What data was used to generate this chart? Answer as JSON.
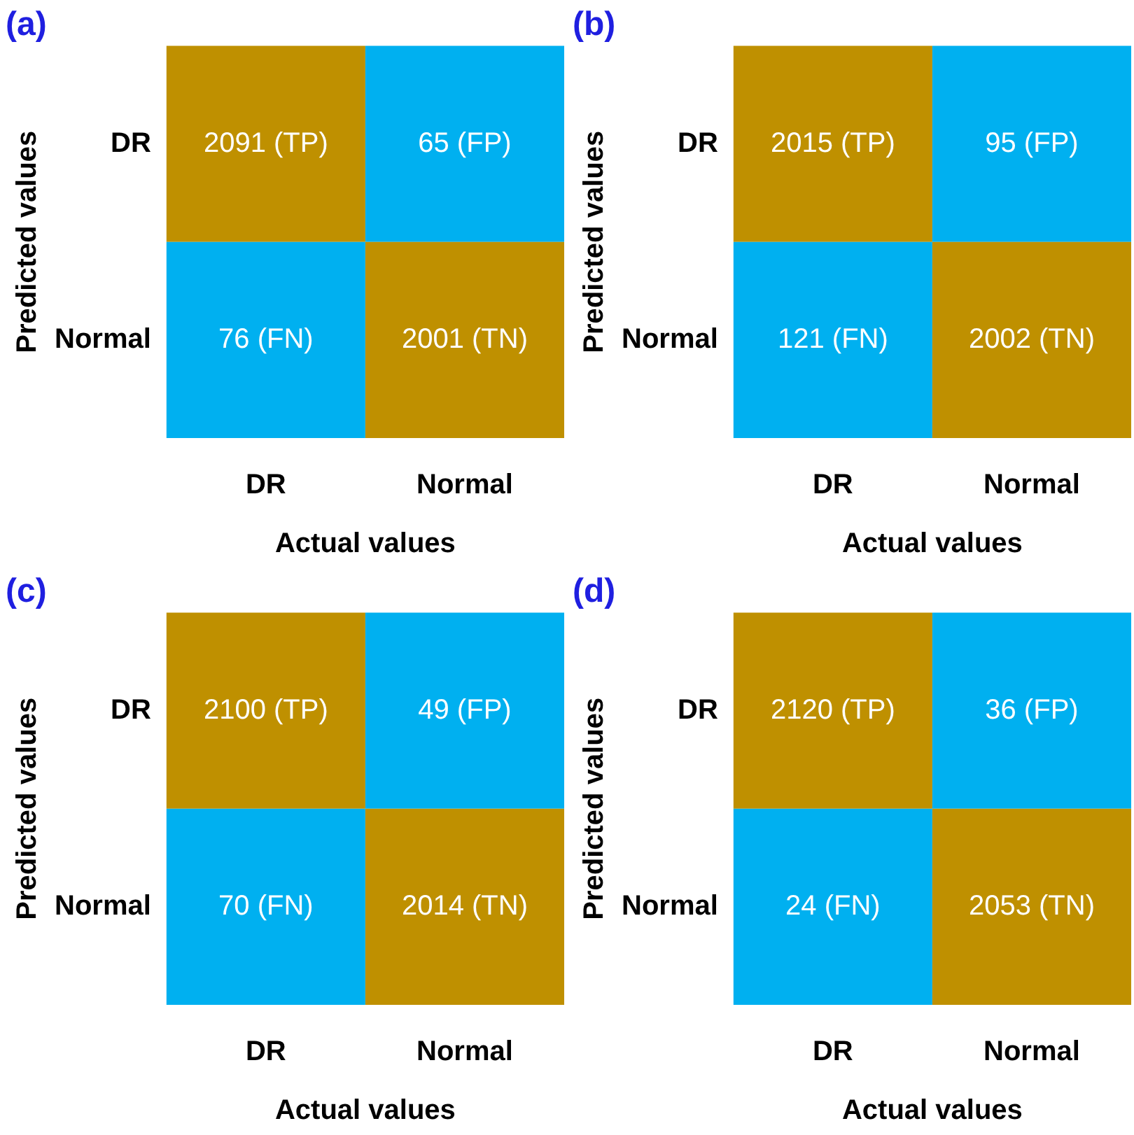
{
  "chart_data": [
    {
      "type": "heatmap",
      "title": "(a)",
      "xlabel": "Actual values",
      "ylabel": "Predicted values",
      "categories": [
        "DR",
        "Normal"
      ],
      "y_categories": [
        "DR",
        "Normal"
      ],
      "cells": [
        [
          2091,
          65
        ],
        [
          76,
          2001
        ]
      ],
      "cell_labels": [
        [
          "2091 (TP)",
          "65 (FP)"
        ],
        [
          "76 (FN)",
          "2001 (TN)"
        ]
      ],
      "colors": [
        [
          "#bf9000",
          "#00b0f0"
        ],
        [
          "#00b0f0",
          "#bf9000"
        ]
      ]
    },
    {
      "type": "heatmap",
      "title": "(b)",
      "xlabel": "Actual values",
      "ylabel": "Predicted values",
      "categories": [
        "DR",
        "Normal"
      ],
      "y_categories": [
        "DR",
        "Normal"
      ],
      "cells": [
        [
          2015,
          95
        ],
        [
          121,
          2002
        ]
      ],
      "cell_labels": [
        [
          "2015 (TP)",
          "95 (FP)"
        ],
        [
          "121 (FN)",
          "2002 (TN)"
        ]
      ],
      "colors": [
        [
          "#bf9000",
          "#00b0f0"
        ],
        [
          "#00b0f0",
          "#bf9000"
        ]
      ]
    },
    {
      "type": "heatmap",
      "title": "(c)",
      "xlabel": "Actual values",
      "ylabel": "Predicted values",
      "categories": [
        "DR",
        "Normal"
      ],
      "y_categories": [
        "DR",
        "Normal"
      ],
      "cells": [
        [
          2100,
          49
        ],
        [
          70,
          2014
        ]
      ],
      "cell_labels": [
        [
          "2100 (TP)",
          "49 (FP)"
        ],
        [
          "70 (FN)",
          "2014 (TN)"
        ]
      ],
      "colors": [
        [
          "#bf9000",
          "#00b0f0"
        ],
        [
          "#00b0f0",
          "#bf9000"
        ]
      ]
    },
    {
      "type": "heatmap",
      "title": "(d)",
      "xlabel": "Actual values",
      "ylabel": "Predicted values",
      "categories": [
        "DR",
        "Normal"
      ],
      "y_categories": [
        "DR",
        "Normal"
      ],
      "cells": [
        [
          2120,
          36
        ],
        [
          24,
          2053
        ]
      ],
      "cell_labels": [
        [
          "2120 (TP)",
          "36 (FP)"
        ],
        [
          "24 (FN)",
          "2053 (TN)"
        ]
      ],
      "colors": [
        [
          "#bf9000",
          "#00b0f0"
        ],
        [
          "#00b0f0",
          "#bf9000"
        ]
      ]
    }
  ]
}
